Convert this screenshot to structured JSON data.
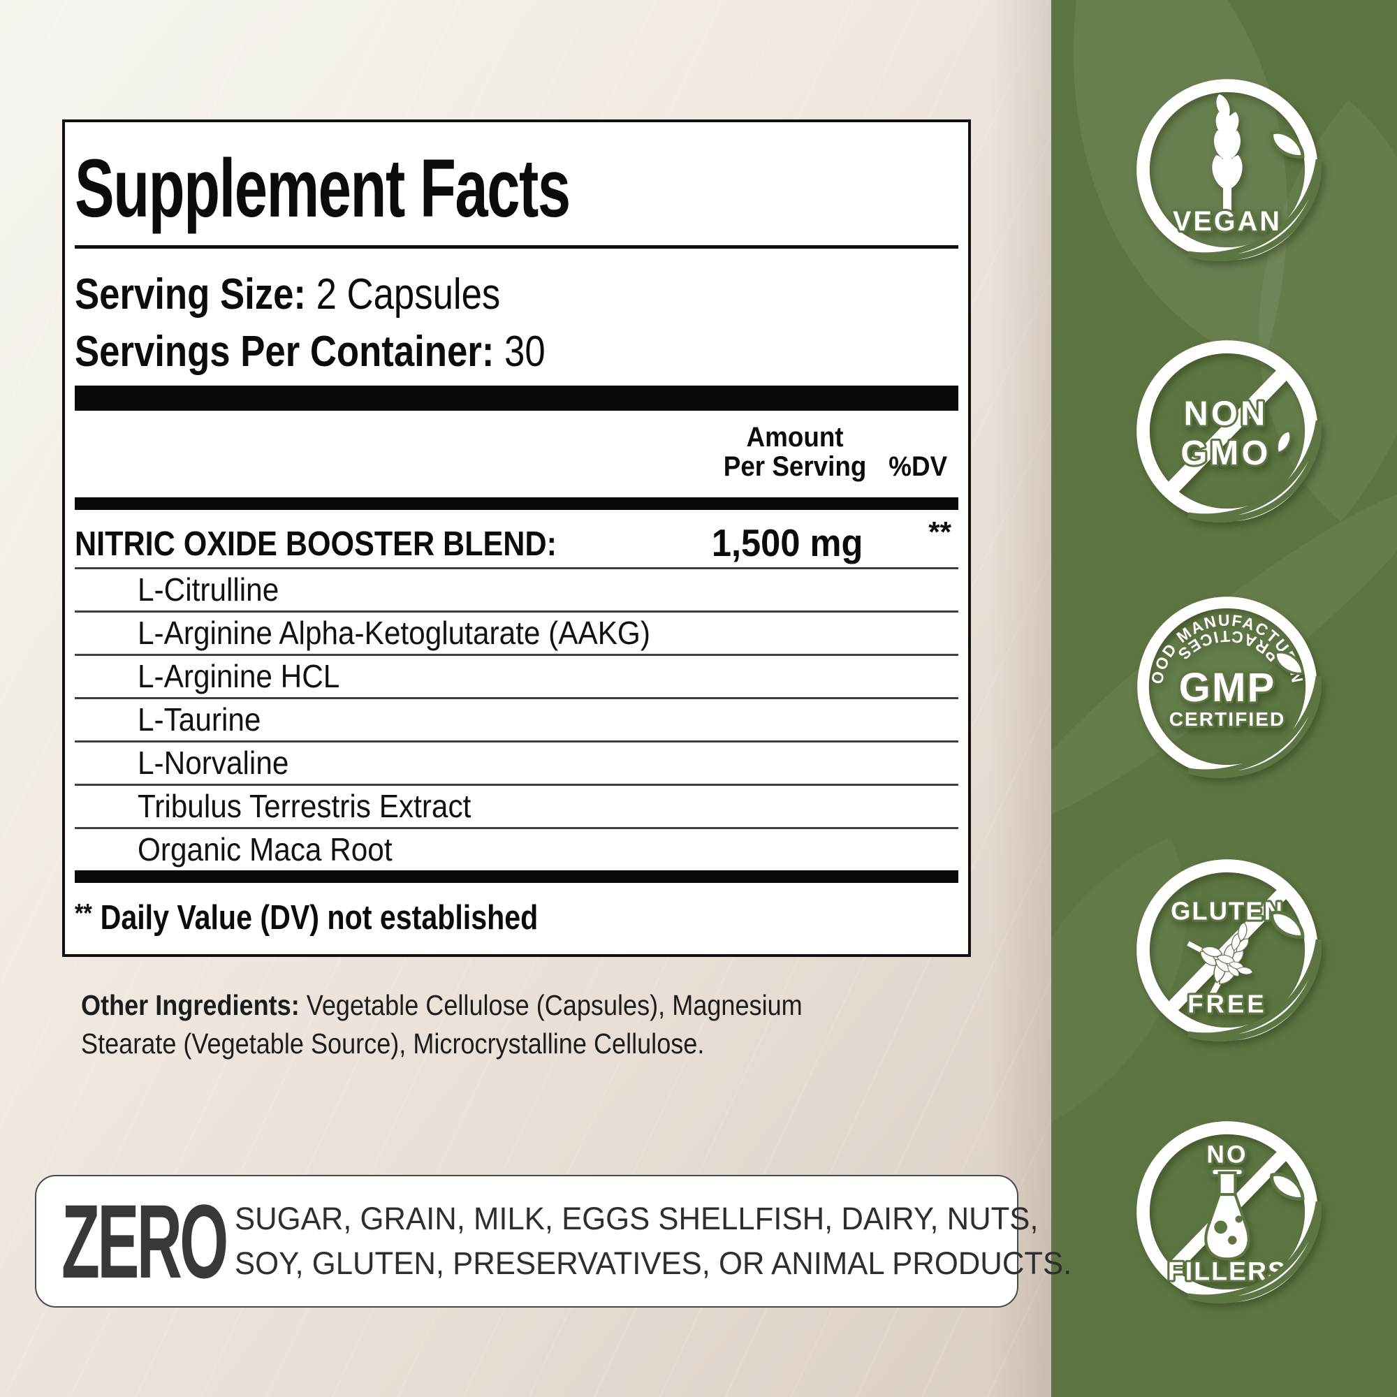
{
  "panel": {
    "title": "Supplement Facts",
    "serving_size_label": "Serving Size:",
    "serving_size_value": " 2 Capsules",
    "servings_label": "Servings Per Container:",
    "servings_value": " 30",
    "col_amount_line1": "Amount",
    "col_amount_line2": "Per Serving",
    "col_dv": "%DV",
    "blend": {
      "name": "NITRIC OXIDE BOOSTER BLEND:",
      "amount": "1,500 mg",
      "dv": "**"
    },
    "ingredients": [
      "L-Citrulline",
      "L-Arginine Alpha-Ketoglutarate (AAKG)",
      "L-Arginine HCL",
      "L-Taurine",
      "L-Norvaline",
      "Tribulus Terrestris Extract",
      "Organic Maca Root"
    ],
    "footnote_mark": "**",
    "footnote_text": "Daily Value (DV) not established"
  },
  "other_ingredients": {
    "label": "Other Ingredients:",
    "line1_rest": " Vegetable Cellulose (Capsules), Magnesium",
    "line2": "Stearate (Vegetable Source), Microcrystalline Cellulose."
  },
  "zero": {
    "word": "ZERO",
    "line1": "SUGAR, GRAIN, MILK, EGGS SHELLFISH, DAIRY, NUTS,",
    "line2": "SOY, GLUTEN, PRESERVATIVES, OR ANIMAL PRODUCTS."
  },
  "badges": {
    "vegan": {
      "label": "VEGAN"
    },
    "non_gmo": {
      "line1": "NON",
      "line2": "GMO"
    },
    "gmp": {
      "arc_top": "GOOD MANUFACTURING",
      "center": "GMP",
      "sub": "CERTIFIED",
      "arc_bottom": "PRACTICES"
    },
    "gluten": {
      "line1": "GLUTEN",
      "line2": "FREE"
    },
    "fillers": {
      "line1": "NO",
      "line2": "FILLERS"
    }
  },
  "colors": {
    "band_green": "#5d7542",
    "panel_border": "#101010",
    "bar_black": "#0a0a0a",
    "text_dark": "#0b0b0b",
    "beige_light": "#f7f4ef",
    "beige_dark": "#d2c5bb"
  }
}
